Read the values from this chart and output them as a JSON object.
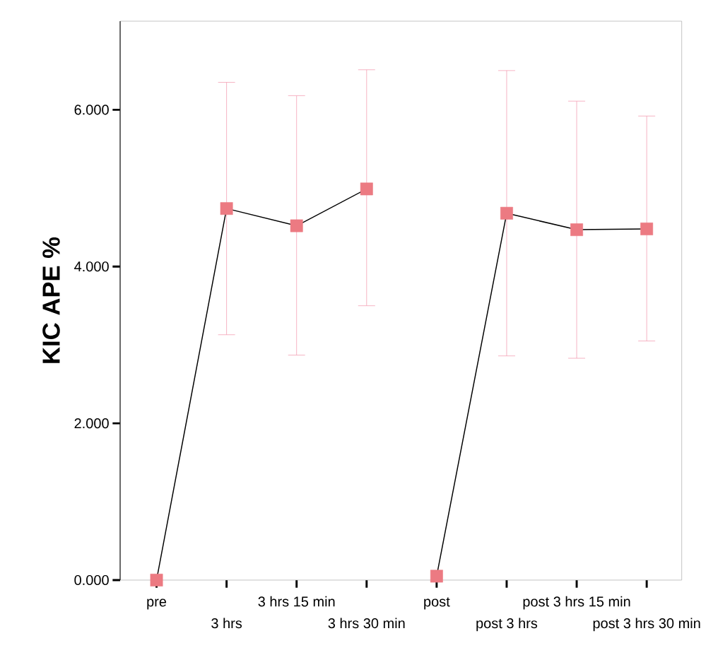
{
  "chart_data": {
    "type": "line",
    "ylabel": "KIC APE %",
    "categories": [
      "pre",
      "3 hrs",
      "3 hrs 15 min",
      "3 hrs 30 min",
      "post",
      "post 3 hrs",
      "post 3 hrs 15 min",
      "post 3 hrs 30 min"
    ],
    "series": [
      {
        "color": "#ec7a82",
        "values": [
          0,
          4.74,
          4.52,
          4.99,
          null,
          null,
          null,
          null
        ],
        "errors": [
          null,
          [
            3.13,
            6.35
          ],
          [
            2.87,
            6.18
          ],
          [
            3.5,
            6.51
          ],
          null,
          null,
          null,
          null
        ]
      },
      {
        "color": "#ec7a82",
        "values": [
          null,
          null,
          null,
          null,
          0.05,
          4.68,
          4.47,
          4.48
        ],
        "errors": [
          null,
          null,
          null,
          null,
          null,
          [
            2.86,
            6.5
          ],
          [
            2.83,
            6.11
          ],
          [
            3.05,
            5.92
          ]
        ]
      }
    ],
    "marker": "square",
    "ylim": [
      0,
      7.13
    ],
    "yticks": [
      {
        "value": 0,
        "label": "0.000"
      },
      {
        "value": 2,
        "label": "2.000"
      },
      {
        "value": 4,
        "label": "4.000"
      },
      {
        "value": 6,
        "label": "6.000"
      }
    ]
  }
}
